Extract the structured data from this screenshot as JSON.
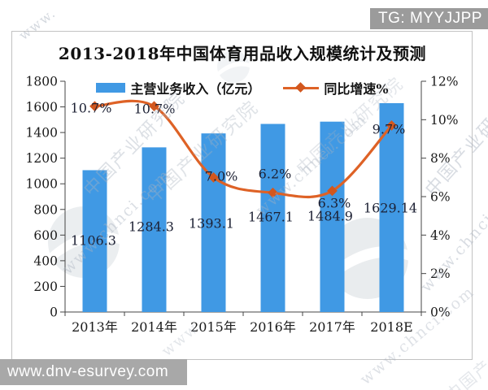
{
  "badge": {
    "text": "TG: MYYJJPP"
  },
  "footer": {
    "url": "www.dnv-esurvey.com"
  },
  "watermark": {
    "org": "中国产业研究院",
    "url": "www.chnci.com",
    "corner": "www."
  },
  "chart_data": {
    "type": "bar",
    "title": "2013-2018年中国体育用品收入规模统计及预测",
    "categories": [
      "2013年",
      "2014年",
      "2015年",
      "2016年",
      "2017年",
      "2018E"
    ],
    "series": [
      {
        "name": "主营业务收入（亿元）",
        "type": "bar",
        "axis": "left",
        "color": "#4099E4",
        "values": [
          1106.3,
          1284.3,
          1393.1,
          1467.1,
          1484.9,
          1629.14
        ],
        "labels": [
          "1106.3",
          "1284.3",
          "1393.1",
          "1467.1",
          "1484.9",
          "1629.14"
        ]
      },
      {
        "name": "同比增速%",
        "type": "line",
        "axis": "right",
        "color": "#DE6226",
        "marker_color": "#D2571E",
        "values": [
          10.7,
          10.7,
          7.0,
          6.2,
          6.3,
          9.7
        ],
        "labels": [
          "10.7%",
          "10.7%",
          "7.0%",
          "6.2%",
          "6.3%",
          "9.7%"
        ]
      }
    ],
    "left_axis": {
      "min": 0,
      "max": 1800,
      "step": 200,
      "ticks": [
        "0",
        "200",
        "400",
        "600",
        "800",
        "1000",
        "1200",
        "1400",
        "1600",
        "1800"
      ]
    },
    "right_axis": {
      "min": 0,
      "max": 12,
      "step": 2,
      "ticks": [
        "0%",
        "2%",
        "4%",
        "6%",
        "8%",
        "10%",
        "12%"
      ]
    },
    "grid": false,
    "legend_position": "top",
    "label_color": "#1C2033",
    "axis_color": "#444444"
  }
}
